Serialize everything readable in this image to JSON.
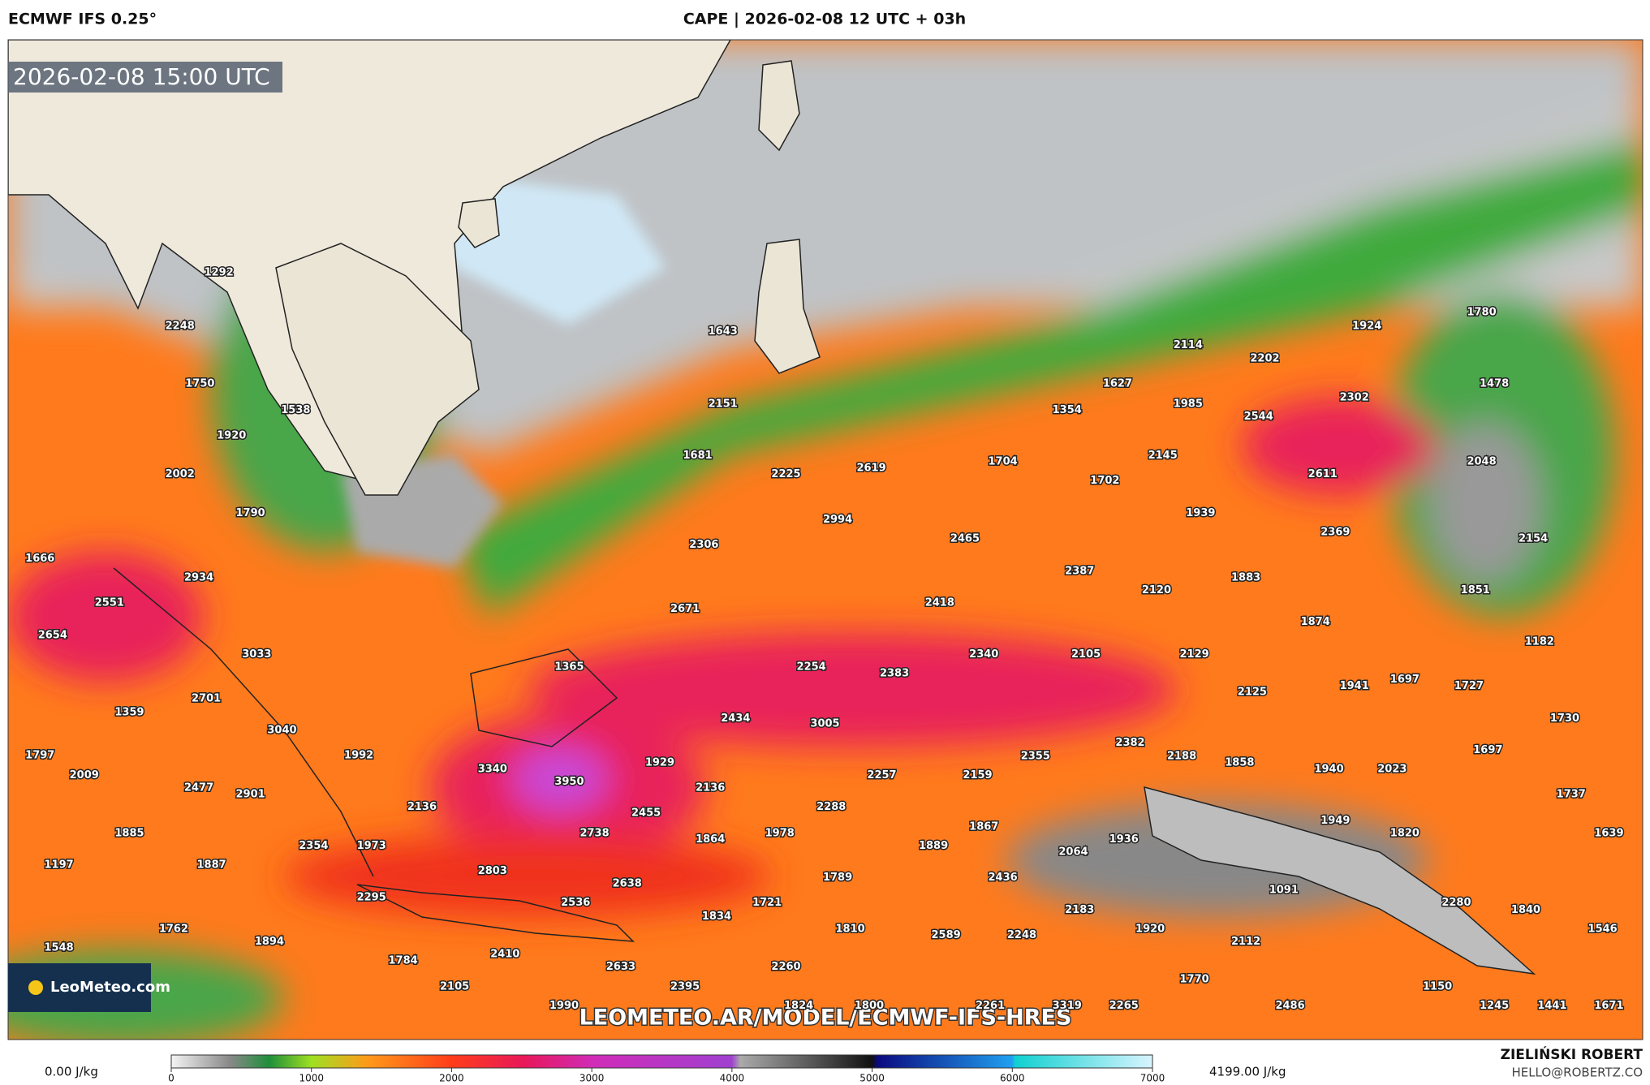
{
  "header": {
    "model": "ECMWF IFS 0.25°",
    "title": "CAPE | 2026-02-08 12 UTC + 03h"
  },
  "map": {
    "valid_time": "2026-02-08 15:00 UTC",
    "url": "LEOMETEO.AR/MODEL/ECMWF-IFS-HRES",
    "logo": "LeoMeteo.com",
    "point_values": [
      1292,
      2248,
      1750,
      1538,
      1920,
      2002,
      1790,
      1666,
      2934,
      2551,
      2654,
      3033,
      2701,
      1359,
      3040,
      1797,
      1992,
      2009,
      2477,
      2901,
      2136,
      1885,
      2354,
      1973,
      1197,
      1887,
      2295,
      1762,
      1894,
      1548,
      1784,
      2105,
      2410,
      1990,
      1643,
      2151,
      1681,
      2225,
      2306,
      2994,
      2619,
      2671,
      1365,
      2254,
      2383,
      2434,
      3005,
      1929,
      3340,
      3950,
      2136,
      2455,
      2738,
      1864,
      1978,
      2288,
      2257,
      2803,
      2638,
      2536,
      1789,
      1721,
      1834,
      1810,
      2633,
      2260,
      2395,
      1824,
      1800,
      1704,
      2465,
      2418,
      2340,
      2159,
      1889,
      1867,
      2436,
      2589,
      2248,
      2261,
      3319,
      2265,
      2387,
      1354,
      1627,
      1702,
      2145,
      2114,
      1985,
      2202,
      2544,
      2611,
      2302,
      1924,
      1780,
      1478,
      2048,
      2369,
      2154,
      1939,
      2120,
      1883,
      1851,
      1874,
      1182,
      2105,
      2129,
      2125,
      1941,
      1697,
      1727,
      1730,
      2355,
      2382,
      2188,
      1858,
      1940,
      2023,
      1697,
      1737,
      1949,
      1820,
      1639,
      1936,
      2064,
      1091,
      2280,
      1840,
      2183,
      1920,
      1546,
      2112,
      1770,
      1150,
      2486,
      1245,
      1441,
      1671
    ]
  },
  "legend": {
    "min_label": "0.00 J/kg",
    "max_label": "4199.00 J/kg",
    "lim": [
      0,
      7000
    ],
    "ticks": [
      0,
      1000,
      2000,
      3000,
      4000,
      5000,
      6000,
      7000
    ]
  },
  "footer": {
    "author": "ZIELIŃSKI ROBERT",
    "contact": "HELLO@ROBERTZ.CO"
  }
}
